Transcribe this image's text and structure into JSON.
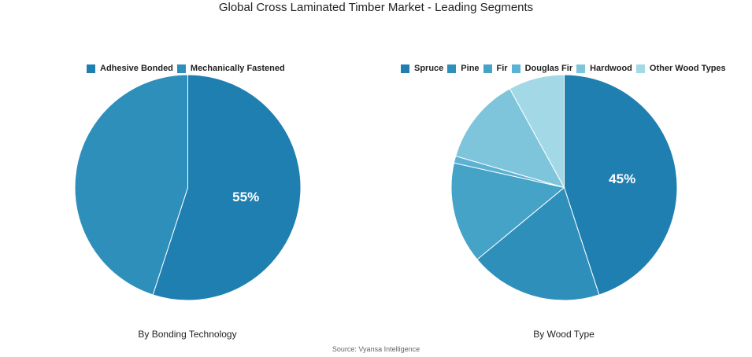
{
  "title": "Global Cross Laminated Timber Market - Leading Segments",
  "source": "Source: Vyansa Intelligence",
  "chart_data": [
    {
      "type": "pie",
      "subtitle": "By Bonding Technology",
      "legend_position": "top",
      "slices": [
        {
          "label": "Adhesive Bonded",
          "value": 55,
          "color": "#1f7fb0",
          "show_label": "55%"
        },
        {
          "label": "Mechanically Fastened",
          "value": 45,
          "color": "#2e8fbb",
          "show_label": ""
        }
      ]
    },
    {
      "type": "pie",
      "subtitle": "By Wood Type",
      "legend_position": "top",
      "slices": [
        {
          "label": "Spruce",
          "value": 45,
          "color": "#1f7fb0",
          "show_label": "45%"
        },
        {
          "label": "Pine",
          "value": 19,
          "color": "#2e8fbb",
          "show_label": ""
        },
        {
          "label": "Fir",
          "value": 14.5,
          "color": "#45a3c8",
          "show_label": ""
        },
        {
          "label": "Douglas Fir",
          "value": 1,
          "color": "#5bb2d3",
          "show_label": ""
        },
        {
          "label": "Hardwood",
          "value": 12.5,
          "color": "#7ec5dc",
          "show_label": ""
        },
        {
          "label": "Other Wood Types",
          "value": 8,
          "color": "#a3d8e6",
          "show_label": ""
        }
      ]
    }
  ]
}
